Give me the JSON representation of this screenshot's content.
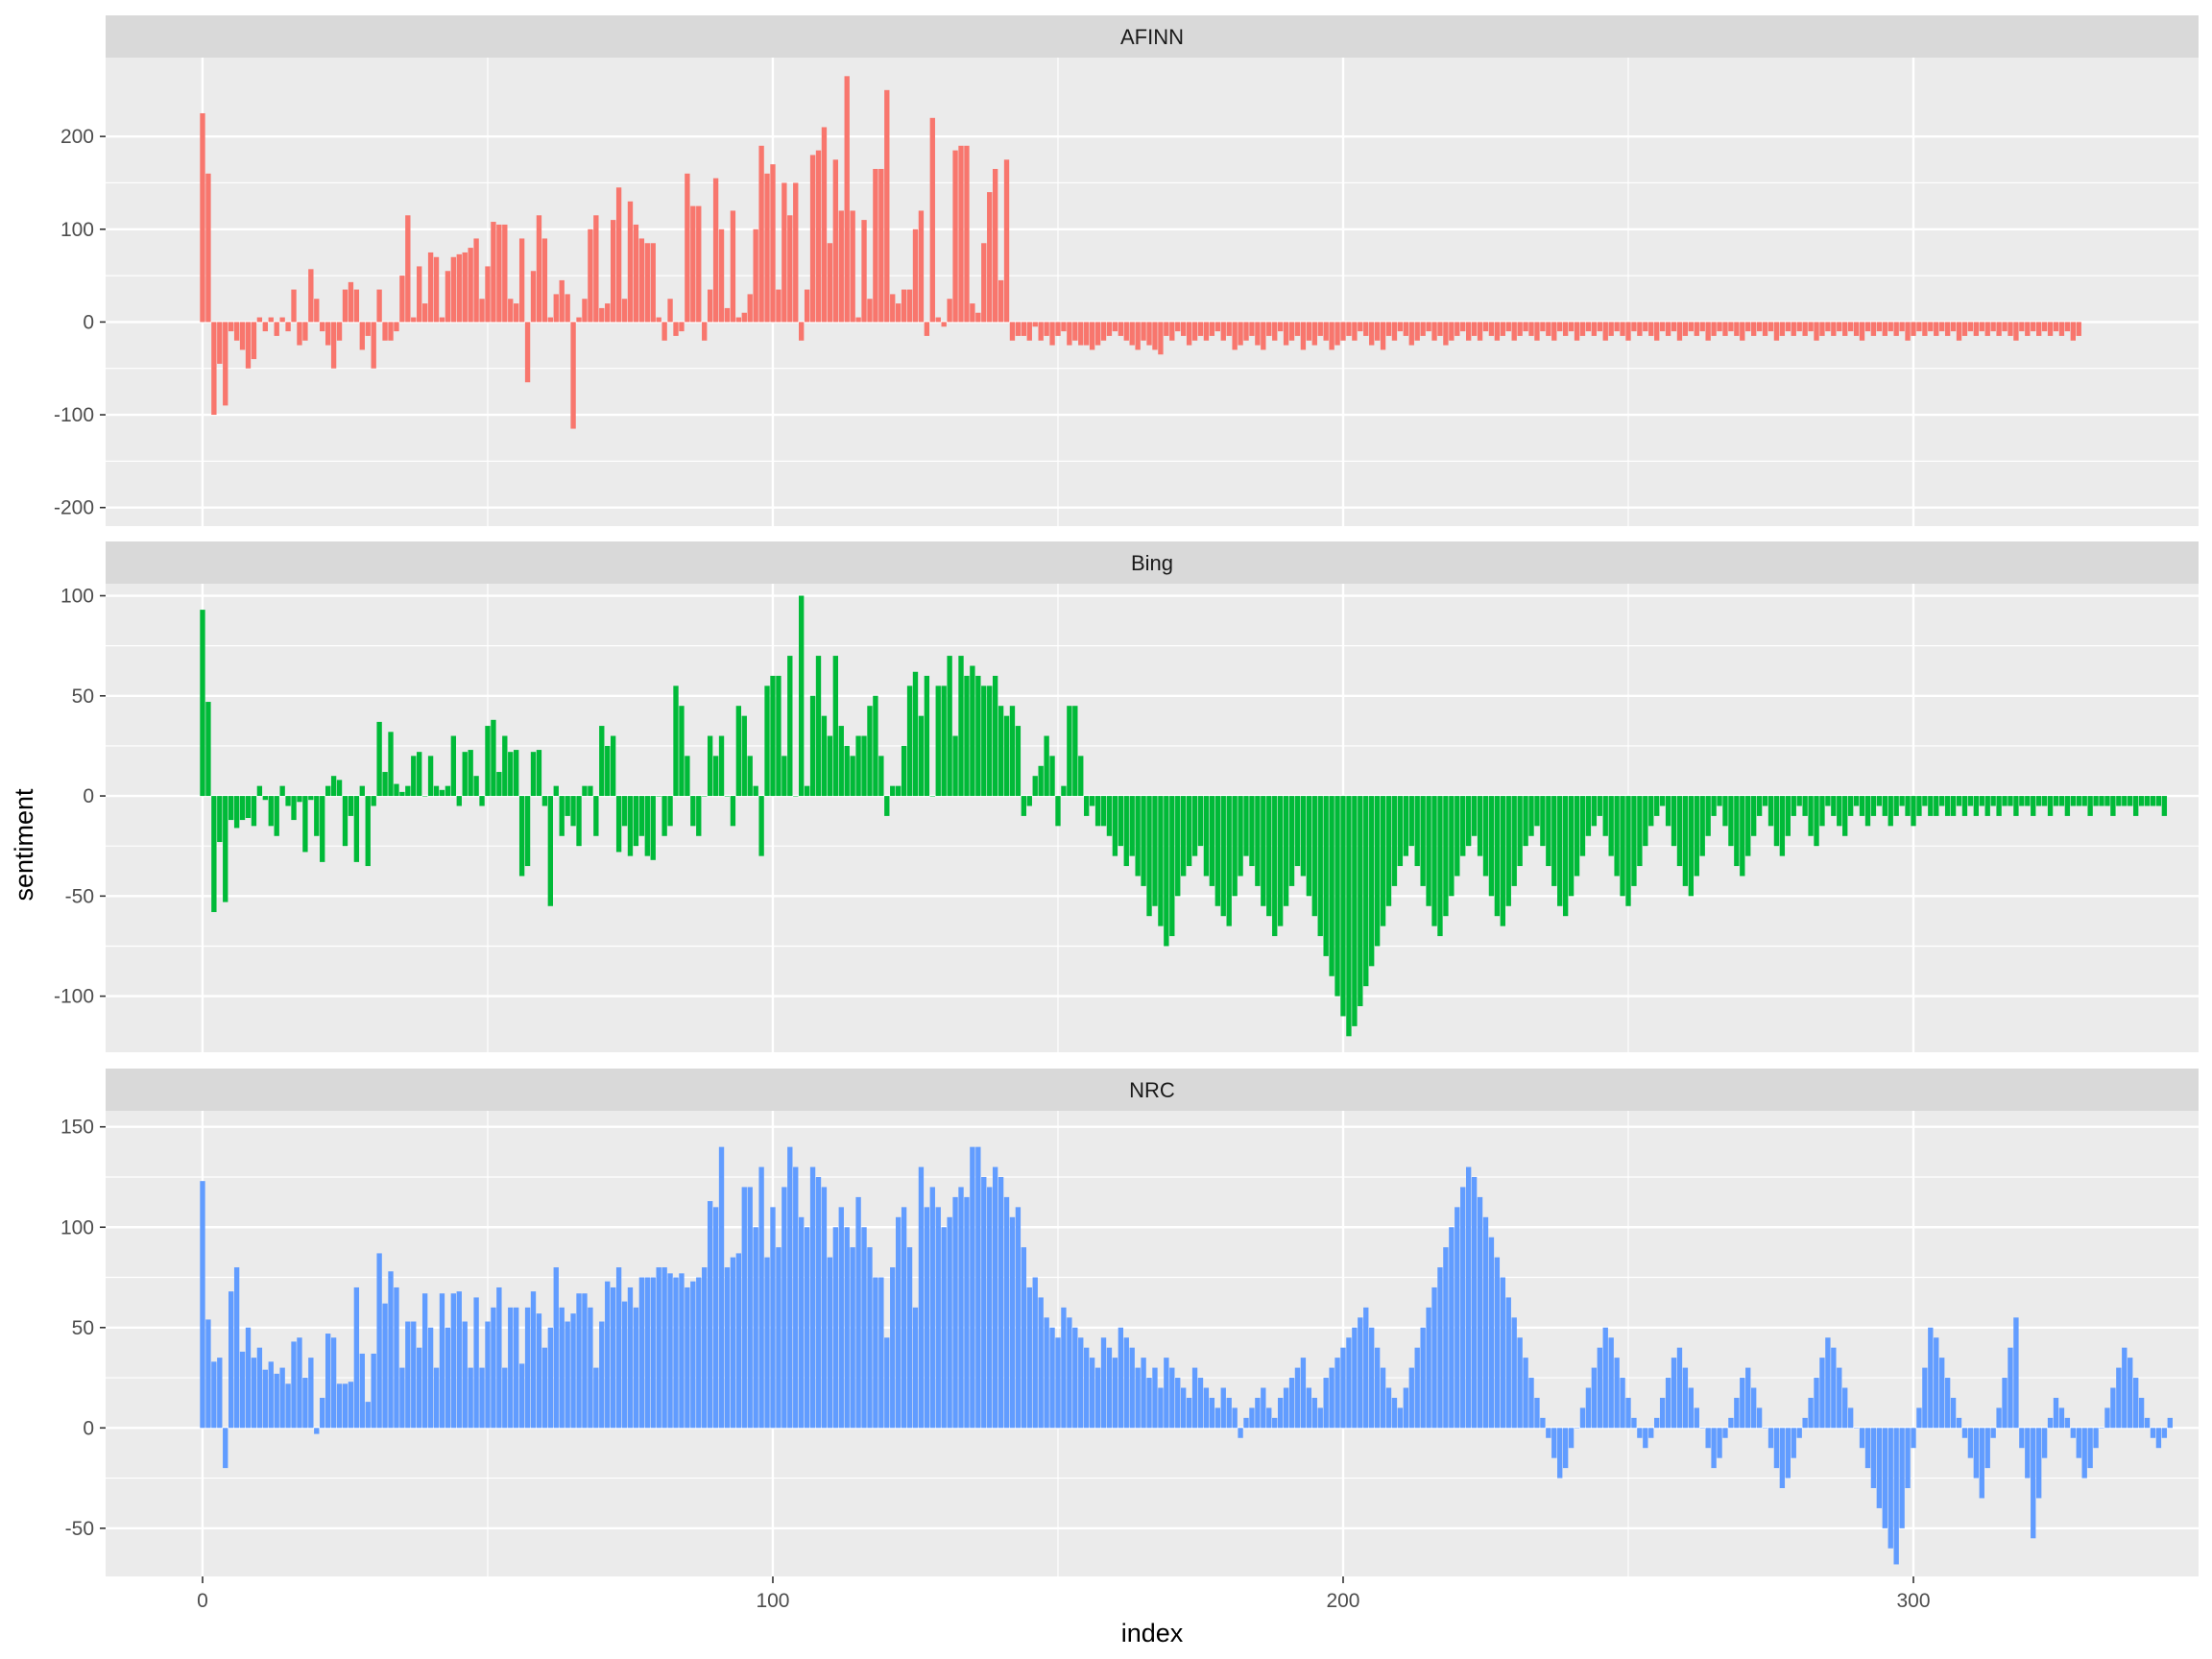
{
  "chart_data": {
    "type": "bar",
    "facet_layout": "3 rows, free y scales, shared x axis",
    "xlabel": "index",
    "ylabel": "sentiment",
    "legend": "none",
    "grid": true,
    "xlim": [
      -17,
      350
    ],
    "x_breaks": [
      0,
      100,
      200,
      300
    ],
    "x_tick_labels": [
      "0",
      "100",
      "200",
      "300"
    ],
    "panels": [
      {
        "method": "AFINN",
        "color": "#F8766D",
        "ylim": [
          -220,
          285
        ],
        "y_breaks": [
          -200,
          -100,
          0,
          100,
          200
        ],
        "y_tick_labels": [
          "-200",
          "-100",
          "0",
          "100",
          "200"
        ],
        "values": [
          225,
          160,
          -100,
          -45,
          -90,
          -10,
          -20,
          -30,
          -50,
          -40,
          5,
          -10,
          5,
          -15,
          5,
          -10,
          35,
          -25,
          -20,
          57,
          25,
          -10,
          -25,
          -50,
          -20,
          35,
          43,
          35,
          -30,
          -15,
          -50,
          35,
          -20,
          -20,
          -10,
          50,
          115,
          5,
          60,
          20,
          75,
          70,
          5,
          55,
          70,
          73,
          75,
          80,
          90,
          25,
          60,
          108,
          105,
          105,
          25,
          20,
          90,
          -65,
          55,
          115,
          90,
          5,
          30,
          45,
          30,
          -115,
          5,
          25,
          100,
          115,
          15,
          20,
          110,
          145,
          25,
          130,
          105,
          90,
          85,
          85,
          5,
          -20,
          25,
          -15,
          -10,
          160,
          125,
          125,
          -20,
          35,
          155,
          100,
          15,
          120,
          5,
          10,
          30,
          100,
          190,
          160,
          170,
          35,
          150,
          115,
          150,
          -20,
          35,
          180,
          185,
          210,
          85,
          175,
          120,
          265,
          120,
          5,
          110,
          25,
          165,
          165,
          250,
          30,
          20,
          35,
          35,
          100,
          120,
          -15,
          220,
          5,
          -5,
          25,
          185,
          190,
          190,
          20,
          10,
          85,
          140,
          165,
          45,
          175,
          -20,
          -15,
          -15,
          -20,
          -5,
          -20,
          -15,
          -25,
          -15,
          -10,
          -25,
          -20,
          -25,
          -25,
          -30,
          -25,
          -20,
          -15,
          -10,
          -15,
          -20,
          -25,
          -30,
          -20,
          -25,
          -30,
          -35,
          -15,
          -20,
          -10,
          -15,
          -25,
          -20,
          -15,
          -20,
          -15,
          -10,
          -20,
          -15,
          -30,
          -25,
          -20,
          -15,
          -25,
          -30,
          -15,
          -20,
          -10,
          -25,
          -20,
          -15,
          -30,
          -20,
          -25,
          -15,
          -20,
          -30,
          -25,
          -20,
          -15,
          -20,
          -10,
          -15,
          -25,
          -20,
          -30,
          -15,
          -20,
          -10,
          -15,
          -25,
          -20,
          -15,
          -10,
          -20,
          -15,
          -25,
          -20,
          -15,
          -10,
          -20,
          -15,
          -20,
          -10,
          -15,
          -20,
          -15,
          -10,
          -20,
          -15,
          -10,
          -15,
          -20,
          -10,
          -15,
          -20,
          -10,
          -15,
          -10,
          -20,
          -15,
          -10,
          -15,
          -10,
          -20,
          -15,
          -10,
          -15,
          -20,
          -10,
          -15,
          -10,
          -15,
          -20,
          -10,
          -15,
          -10,
          -20,
          -15,
          -10,
          -15,
          -10,
          -20,
          -15,
          -10,
          -15,
          -10,
          -15,
          -20,
          -10,
          -15,
          -10,
          -15,
          -10,
          -20,
          -15,
          -10,
          -15,
          -10,
          -15,
          -10,
          -20,
          -15,
          -10,
          -15,
          -10,
          -15,
          -10,
          -15,
          -20,
          -10,
          -15,
          -10,
          -15,
          -10,
          -15,
          -10,
          -20,
          -15,
          -10,
          -15,
          -10,
          -15,
          -10,
          -15,
          -10,
          -20,
          -15,
          -10,
          -15,
          -10,
          -15,
          -10,
          -15,
          -10,
          -15,
          -20,
          -10,
          -15,
          -10,
          -15,
          -10,
          -15,
          -10,
          -15,
          -10,
          -20,
          -15
        ]
      },
      {
        "method": "Bing",
        "color": "#00BA38",
        "ylim": [
          -128,
          106
        ],
        "y_breaks": [
          -100,
          -50,
          0,
          50,
          100
        ],
        "y_tick_labels": [
          "-100",
          "-50",
          "0",
          "50",
          "100"
        ],
        "values": [
          93,
          47,
          -58,
          -23,
          -53,
          -12,
          -16,
          -12,
          -11,
          -15,
          5,
          -2,
          -15,
          -20,
          5,
          -5,
          -12,
          -3,
          -28,
          -2,
          -20,
          -33,
          5,
          10,
          8,
          -25,
          -10,
          -33,
          5,
          -35,
          -5,
          37,
          12,
          32,
          6,
          2,
          5,
          20,
          22,
          0,
          20,
          5,
          3,
          5,
          30,
          -5,
          22,
          23,
          10,
          -5,
          35,
          38,
          12,
          30,
          22,
          23,
          -40,
          -35,
          22,
          23,
          -5,
          -55,
          5,
          -20,
          -10,
          -15,
          -25,
          5,
          5,
          -20,
          35,
          25,
          30,
          -28,
          -15,
          -30,
          -25,
          -20,
          -30,
          -32,
          0,
          -20,
          -15,
          55,
          45,
          20,
          -15,
          -20,
          0,
          30,
          20,
          30,
          0,
          -15,
          45,
          40,
          20,
          5,
          -30,
          55,
          60,
          60,
          20,
          70,
          0,
          100,
          5,
          50,
          70,
          40,
          30,
          70,
          35,
          25,
          20,
          30,
          30,
          45,
          50,
          20,
          -10,
          5,
          5,
          25,
          55,
          62,
          40,
          60,
          0,
          55,
          55,
          70,
          30,
          70,
          60,
          65,
          60,
          55,
          55,
          60,
          45,
          40,
          45,
          35,
          -10,
          -5,
          10,
          15,
          30,
          20,
          -15,
          5,
          45,
          45,
          20,
          -10,
          -5,
          -15,
          -15,
          -20,
          -30,
          -25,
          -35,
          -30,
          -40,
          -45,
          -60,
          -55,
          -65,
          -75,
          -70,
          -50,
          -40,
          -35,
          -30,
          -25,
          -40,
          -45,
          -55,
          -60,
          -65,
          -50,
          -40,
          -30,
          -35,
          -45,
          -55,
          -60,
          -70,
          -65,
          -55,
          -45,
          -35,
          -40,
          -50,
          -60,
          -70,
          -80,
          -90,
          -100,
          -110,
          -120,
          -115,
          -105,
          -95,
          -85,
          -75,
          -65,
          -55,
          -45,
          -35,
          -30,
          -25,
          -35,
          -45,
          -55,
          -65,
          -70,
          -60,
          -50,
          -40,
          -30,
          -25,
          -20,
          -30,
          -40,
          -50,
          -60,
          -65,
          -55,
          -45,
          -35,
          -25,
          -20,
          -15,
          -25,
          -35,
          -45,
          -55,
          -60,
          -50,
          -40,
          -30,
          -20,
          -15,
          -10,
          -20,
          -30,
          -40,
          -50,
          -55,
          -45,
          -35,
          -25,
          -15,
          -10,
          -5,
          -15,
          -25,
          -35,
          -45,
          -50,
          -40,
          -30,
          -20,
          -10,
          -5,
          -15,
          -25,
          -35,
          -40,
          -30,
          -20,
          -10,
          -5,
          -15,
          -25,
          -30,
          -20,
          -10,
          -5,
          -10,
          -20,
          -25,
          -15,
          -5,
          -10,
          -15,
          -20,
          -10,
          -5,
          -10,
          -15,
          -10,
          -5,
          -10,
          -15,
          -10,
          -5,
          -10,
          -15,
          -10,
          -5,
          -10,
          -10,
          -5,
          -10,
          -10,
          -5,
          -10,
          -5,
          -10,
          -5,
          -10,
          -5,
          -10,
          -5,
          -5,
          -10,
          -5,
          -5,
          -10,
          -5,
          -5,
          -10,
          -5,
          -5,
          -10,
          -5,
          -5,
          -5,
          -10,
          -5,
          -5,
          -5,
          -10,
          -5,
          -5,
          -5,
          -10,
          -5,
          -5,
          -5,
          -5,
          -10
        ]
      },
      {
        "method": "NRC",
        "color": "#619CFF",
        "ylim": [
          -74,
          158
        ],
        "y_breaks": [
          -50,
          0,
          50,
          100,
          150
        ],
        "y_tick_labels": [
          "-50",
          "0",
          "50",
          "100",
          "150"
        ],
        "values": [
          123,
          54,
          33,
          35,
          -20,
          68,
          80,
          38,
          50,
          35,
          40,
          29,
          33,
          27,
          30,
          22,
          43,
          45,
          25,
          35,
          -3,
          15,
          47,
          45,
          22,
          22,
          23,
          70,
          37,
          13,
          37,
          87,
          62,
          78,
          70,
          30,
          53,
          53,
          40,
          67,
          50,
          30,
          67,
          50,
          67,
          68,
          53,
          30,
          65,
          30,
          53,
          60,
          70,
          30,
          60,
          60,
          32,
          60,
          68,
          57,
          40,
          50,
          80,
          60,
          53,
          57,
          67,
          67,
          60,
          30,
          53,
          73,
          70,
          80,
          63,
          70,
          60,
          75,
          75,
          75,
          80,
          80,
          77,
          75,
          77,
          70,
          73,
          75,
          80,
          113,
          110,
          140,
          80,
          85,
          87,
          120,
          120,
          100,
          130,
          85,
          110,
          90,
          120,
          140,
          130,
          105,
          100,
          130,
          125,
          120,
          85,
          100,
          110,
          100,
          90,
          115,
          100,
          90,
          75,
          75,
          45,
          80,
          105,
          110,
          90,
          60,
          130,
          110,
          120,
          110,
          100,
          105,
          115,
          120,
          115,
          140,
          140,
          125,
          120,
          130,
          125,
          115,
          105,
          110,
          90,
          70,
          75,
          65,
          55,
          50,
          45,
          60,
          55,
          50,
          45,
          40,
          35,
          30,
          45,
          40,
          35,
          50,
          45,
          40,
          30,
          35,
          25,
          30,
          20,
          35,
          30,
          25,
          20,
          15,
          30,
          25,
          20,
          15,
          10,
          20,
          15,
          10,
          -5,
          5,
          10,
          15,
          20,
          10,
          5,
          15,
          20,
          25,
          30,
          35,
          20,
          15,
          10,
          25,
          30,
          35,
          40,
          45,
          50,
          55,
          60,
          50,
          40,
          30,
          20,
          15,
          10,
          20,
          30,
          40,
          50,
          60,
          70,
          80,
          90,
          100,
          110,
          120,
          130,
          125,
          115,
          105,
          95,
          85,
          75,
          65,
          55,
          45,
          35,
          25,
          15,
          5,
          -5,
          -15,
          -25,
          -20,
          -10,
          0,
          10,
          20,
          30,
          40,
          50,
          45,
          35,
          25,
          15,
          5,
          -5,
          -10,
          -5,
          5,
          15,
          25,
          35,
          40,
          30,
          20,
          10,
          0,
          -10,
          -20,
          -15,
          -5,
          5,
          15,
          25,
          30,
          20,
          10,
          0,
          -10,
          -20,
          -30,
          -25,
          -15,
          -5,
          5,
          15,
          25,
          35,
          45,
          40,
          30,
          20,
          10,
          0,
          -10,
          -20,
          -30,
          -40,
          -50,
          -60,
          -68,
          -50,
          -30,
          -10,
          10,
          30,
          50,
          45,
          35,
          25,
          15,
          5,
          -5,
          -15,
          -25,
          -35,
          -20,
          -5,
          10,
          25,
          40,
          55,
          -10,
          -25,
          -55,
          -35,
          -15,
          5,
          15,
          10,
          5,
          -5,
          -15,
          -25,
          -20,
          -10,
          0,
          10,
          20,
          30,
          40,
          35,
          25,
          15,
          5,
          -5,
          -10,
          -5,
          5
        ]
      }
    ]
  }
}
